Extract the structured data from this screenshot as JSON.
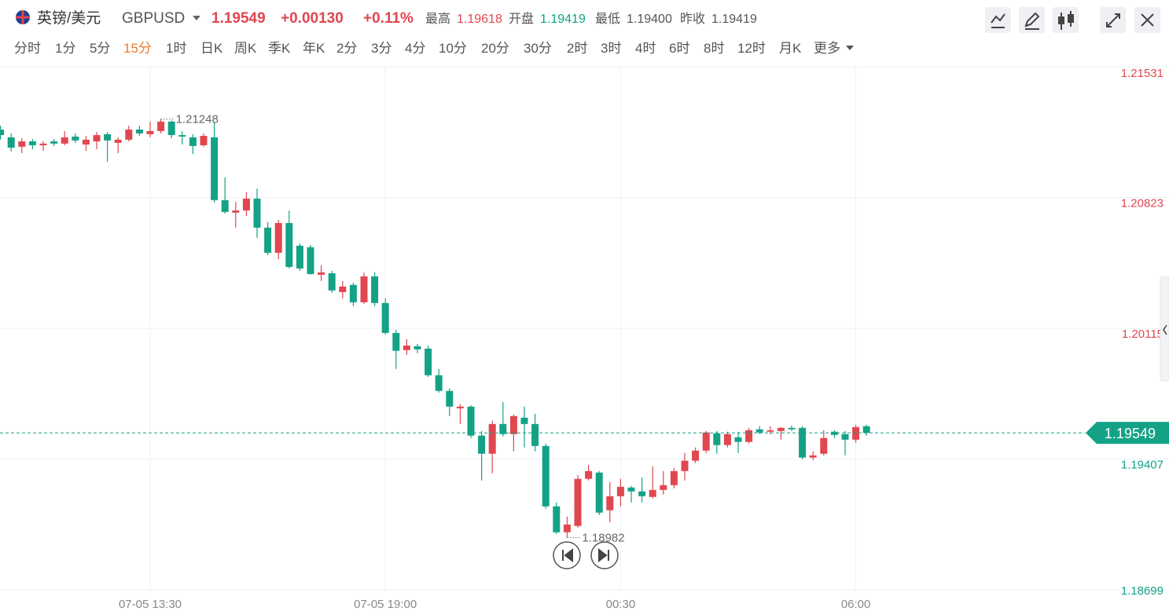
{
  "header": {
    "pair": "英镑/美元",
    "symbol": "GBPUSD",
    "price": "1.19549",
    "change": "+0.00130",
    "change_pct": "+0.11%",
    "stats": [
      {
        "label": "最高",
        "value": "1.19618"
      },
      {
        "label": "开盘",
        "value": "1.19419"
      },
      {
        "label": "最低",
        "value": "1.19400"
      },
      {
        "label": "昨收",
        "value": "1.19419"
      }
    ]
  },
  "tabs": [
    "分时",
    "1分",
    "5分",
    "15分",
    "1时",
    "日K",
    "周K",
    "季K",
    "年K",
    "2分",
    "3分",
    "4分",
    "10分",
    "20分",
    "30分",
    "2时",
    "3时",
    "4时",
    "6时",
    "8时",
    "12时",
    "月K"
  ],
  "more": "更多",
  "active_tab": 3,
  "chart_data": {
    "type": "candlestick",
    "categories": [
      null,
      null,
      null,
      null,
      null,
      null,
      null,
      null,
      null,
      null,
      null,
      null,
      null,
      null,
      "07-05 13:30",
      null,
      null,
      null,
      null,
      null,
      null,
      null,
      null,
      null,
      null,
      null,
      null,
      null,
      null,
      null,
      null,
      null,
      null,
      null,
      null,
      null,
      "07-05 19:00",
      null,
      null,
      null,
      null,
      null,
      null,
      null,
      null,
      null,
      null,
      null,
      null,
      null,
      null,
      null,
      null,
      null,
      null,
      null,
      null,
      null,
      "00:30",
      null,
      null,
      null,
      null,
      null,
      null,
      null,
      null,
      null,
      null,
      null,
      null,
      null,
      null,
      null,
      null,
      null,
      null,
      null,
      null,
      null,
      "06:00",
      null
    ],
    "open": [
      1.21191,
      1.21149,
      1.21098,
      1.21127,
      1.21106,
      1.21127,
      1.21115,
      1.21153,
      1.2111,
      1.21127,
      1.21166,
      1.21119,
      1.21136,
      1.21191,
      1.21166,
      1.21183,
      1.21234,
      1.21161,
      1.21149,
      1.21106,
      1.21149,
      1.20809,
      1.20741,
      1.20753,
      1.20817,
      1.2066,
      1.20524,
      1.20685,
      1.20562,
      1.20554,
      1.20405,
      1.20413,
      1.20311,
      1.2035,
      1.20256,
      1.20396,
      1.20252,
      1.2009,
      1.19997,
      1.20018,
      1.20005,
      1.19861,
      1.19776,
      1.19682,
      1.19691,
      1.19534,
      1.19436,
      1.19597,
      1.19542,
      1.19631,
      1.19597,
      1.19478,
      1.19151,
      1.19011,
      1.19045,
      1.193,
      1.19334,
      1.1913,
      1.19206,
      1.19253,
      1.19232,
      1.19202,
      1.1924,
      1.19266,
      1.19342,
      1.19398,
      1.19453,
      1.19546,
      1.19483,
      1.19525,
      1.195,
      1.19568,
      1.19555,
      1.19559,
      1.19576,
      1.19576,
      1.19415,
      1.19436,
      1.19555,
      1.19542,
      1.19512,
      1.19585
    ],
    "high": [
      1.21212,
      1.2117,
      1.21144,
      1.2114,
      1.21127,
      1.2114,
      1.21183,
      1.2117,
      1.21157,
      1.21178,
      1.21178,
      1.21149,
      1.21212,
      1.21212,
      1.21234,
      1.21248,
      1.2124,
      1.21183,
      1.21166,
      1.2117,
      1.2123,
      1.20932,
      1.208,
      1.20851,
      1.20872,
      1.2069,
      1.20702,
      1.20753,
      1.20575,
      1.20566,
      1.20456,
      1.20426,
      1.20371,
      1.20362,
      1.20418,
      1.20418,
      1.20277,
      1.20107,
      1.20056,
      1.20031,
      1.20022,
      1.19895,
      1.19789,
      1.19704,
      1.19699,
      1.19559,
      1.19614,
      1.19716,
      1.19648,
      1.19691,
      1.19653,
      1.19491,
      1.19172,
      1.19096,
      1.19321,
      1.19376,
      1.19342,
      1.19283,
      1.193,
      1.19262,
      1.19308,
      1.19368,
      1.19342,
      1.19359,
      1.1944,
      1.1947,
      1.19559,
      1.19559,
      1.19555,
      1.19555,
      1.19576,
      1.19585,
      1.19585,
      1.1958,
      1.19589,
      1.19585,
      1.19449,
      1.19563,
      1.19563,
      1.19559,
      1.19593,
      1.19593
    ],
    "low": [
      1.21136,
      1.21072,
      1.21064,
      1.21085,
      1.21076,
      1.21102,
      1.21106,
      1.21119,
      1.21076,
      1.21085,
      1.21017,
      1.21064,
      1.21127,
      1.21157,
      1.21149,
      1.2117,
      1.21144,
      1.2111,
      1.21059,
      1.21098,
      1.20796,
      1.20736,
      1.2066,
      1.20724,
      1.20605,
      1.20511,
      1.2049,
      1.20439,
      1.20426,
      1.20405,
      1.20371,
      1.20307,
      1.20277,
      1.20235,
      1.20248,
      1.20235,
      1.20082,
      1.19895,
      1.19971,
      1.1998,
      1.19852,
      1.19767,
      1.1964,
      1.19597,
      1.19521,
      1.19291,
      1.1933,
      1.19529,
      1.19449,
      1.1947,
      1.19449,
      1.19138,
      1.19002,
      1.18982,
      1.19036,
      1.19291,
      1.19104,
      1.19066,
      1.19151,
      1.19172,
      1.19172,
      1.19194,
      1.19215,
      1.19249,
      1.19291,
      1.19385,
      1.1944,
      1.19436,
      1.1947,
      1.1944,
      1.19491,
      1.19542,
      1.19542,
      1.19512,
      1.19559,
      1.19406,
      1.19402,
      1.19427,
      1.19521,
      1.19427,
      1.19495,
      1.19534
    ],
    "close": [
      1.21161,
      1.21093,
      1.21127,
      1.21106,
      1.21115,
      1.21115,
      1.21149,
      1.21132,
      1.21136,
      1.21161,
      1.21132,
      1.21136,
      1.21191,
      1.2117,
      1.21183,
      1.21234,
      1.21161,
      1.21153,
      1.21102,
      1.21157,
      1.20809,
      1.20745,
      1.20753,
      1.20817,
      1.2066,
      1.20524,
      1.20685,
      1.20447,
      1.20439,
      1.20409,
      1.20418,
      1.2032,
      1.20341,
      1.20256,
      1.20396,
      1.20252,
      1.2009,
      1.19993,
      1.20022,
      1.20001,
      1.19861,
      1.19776,
      1.19691,
      1.19691,
      1.19534,
      1.19436,
      1.19597,
      1.19542,
      1.1964,
      1.19597,
      1.19478,
      1.19151,
      1.19011,
      1.19053,
      1.193,
      1.19342,
      1.19117,
      1.19206,
      1.19257,
      1.19232,
      1.19206,
      1.1924,
      1.19266,
      1.19342,
      1.19398,
      1.19453,
      1.19551,
      1.19483,
      1.19542,
      1.195,
      1.19563,
      1.19551,
      1.19563,
      1.19576,
      1.19568,
      1.19415,
      1.19427,
      1.19521,
      1.19538,
      1.19512,
      1.1958,
      1.19549
    ],
    "high_marker": {
      "index": 15,
      "value": 1.21248
    },
    "low_marker": {
      "index": 53,
      "value": 1.18982
    },
    "last": 1.19549,
    "ylim": [
      1.18699,
      1.21531
    ],
    "yticks": [
      1.18699,
      1.19407,
      1.20115,
      1.20823,
      1.21531
    ],
    "up_color": "#e0474f",
    "down_color": "#14a286",
    "grid": true
  }
}
